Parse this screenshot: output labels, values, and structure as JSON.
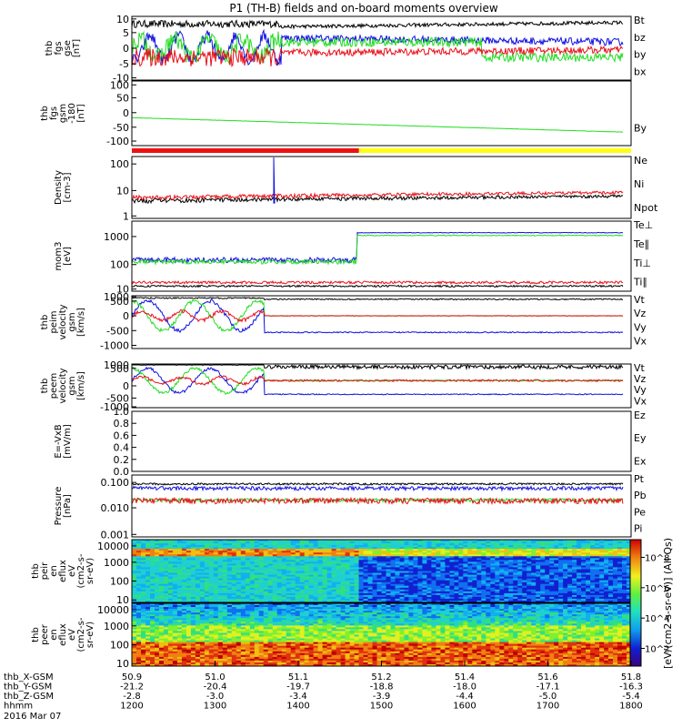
{
  "title": "P1 (TH-B) fields and on-board moments overview",
  "colors": {
    "black": "#000000",
    "red": "#e8101a",
    "green": "#22dd22",
    "blue": "#1010e0"
  },
  "panels": [
    {
      "key": "fgs",
      "ylabel": [
        "thb",
        "fgs",
        "gse",
        "[nT]"
      ],
      "ticks": [
        "10",
        "5",
        "0",
        "-5",
        "-10"
      ],
      "legend": [
        {
          "text": "Bt",
          "color": "black"
        },
        {
          "text": "bz",
          "color": "red"
        },
        {
          "text": "by",
          "color": "green"
        },
        {
          "text": "bx",
          "color": "blue"
        }
      ]
    },
    {
      "key": "fgs_By",
      "ylabel": [
        "thb",
        "fgs",
        "gsm",
        "-180",
        "[nT]"
      ],
      "ticks": [
        "100",
        "50",
        "0",
        "-50",
        "-100"
      ],
      "legend": [
        {
          "text": "By",
          "color": "green"
        }
      ]
    },
    {
      "key": "density",
      "ylabel": [
        "Density",
        "[cm-3]"
      ],
      "ticks": [
        "100",
        "10",
        "1"
      ],
      "legend": [
        {
          "text": "Ne",
          "color": "red"
        },
        {
          "text": "Ni",
          "color": "black"
        },
        {
          "text": "Npot",
          "color": "blue"
        }
      ]
    },
    {
      "key": "temp",
      "ylabel": [
        "mom3",
        "[eV]"
      ],
      "ticks": [
        "1000",
        "100",
        "10"
      ],
      "legend": [
        {
          "text": "Te⊥",
          "color": "red"
        },
        {
          "text": "Te∥",
          "color": "black"
        },
        {
          "text": "Ti⊥",
          "color": "green"
        },
        {
          "text": "Ti∥",
          "color": "green"
        }
      ]
    },
    {
      "key": "peim",
      "ylabel": [
        "thb",
        "peim",
        "velocity",
        "gsm",
        "[km/s]"
      ],
      "ticks": [
        "1000",
        "500",
        "0",
        "-500",
        "-1000"
      ],
      "legend": [
        {
          "text": "Vt",
          "color": "black"
        },
        {
          "text": "Vz",
          "color": "red"
        },
        {
          "text": "Vy",
          "color": "green"
        },
        {
          "text": "Vx",
          "color": "blue"
        }
      ]
    },
    {
      "key": "peem",
      "ylabel": [
        "thb",
        "peem",
        "velocity",
        "gsm",
        "[km/s]"
      ],
      "ticks": [
        "1000",
        "500",
        "0",
        "-500",
        "-1000"
      ],
      "legend": [
        {
          "text": "Vt",
          "color": "black"
        },
        {
          "text": "Vz",
          "color": "red"
        },
        {
          "text": "Vy",
          "color": "green"
        },
        {
          "text": "Vx",
          "color": "blue"
        }
      ]
    },
    {
      "key": "efield",
      "ylabel": [
        "E=-VxB",
        "[mV/m]"
      ],
      "ticks": [
        "1.0",
        "0.8",
        "0.6",
        "0.4",
        "0.2",
        "0.0"
      ],
      "legend": [
        {
          "text": "Ez",
          "color": "red"
        },
        {
          "text": "Ey",
          "color": "green"
        },
        {
          "text": "Ex",
          "color": "blue"
        }
      ]
    },
    {
      "key": "pressure",
      "ylabel": [
        "Pressure",
        "[nPa]"
      ],
      "ticks": [
        "0.100",
        "0.010",
        "0.001"
      ],
      "legend": [
        {
          "text": "Pt",
          "color": "black"
        },
        {
          "text": "Pb",
          "color": "red"
        },
        {
          "text": "Pe",
          "color": "green"
        },
        {
          "text": "Pi",
          "color": "blue"
        }
      ]
    },
    {
      "key": "peir",
      "ylabel": [
        "thb",
        "peir",
        "en",
        "eflux",
        "eV",
        "(cm2-s-",
        "sr-eV)"
      ],
      "ticks": [
        "10000",
        "1000",
        "100",
        "10"
      ],
      "legend": []
    },
    {
      "key": "peer",
      "ylabel": [
        "thb",
        "peer",
        "en",
        "eflux",
        "eV",
        "(cm2-s-",
        "sr-eV)"
      ],
      "ticks": [
        "10000",
        "1000",
        "100",
        "10"
      ],
      "legend": []
    }
  ],
  "colorbar": {
    "label": "[eV/(cm2-s-sr-eV)] (All Qs)",
    "ticks": [
      "10^8",
      "10^6",
      "10^4",
      "10^2"
    ]
  },
  "xaxis": {
    "rows": [
      {
        "label": "thb_X-GSM",
        "values": [
          "50.9",
          "51.0",
          "51.1",
          "51.2",
          "51.4",
          "51.6",
          "51.8"
        ]
      },
      {
        "label": "thb_Y-GSM",
        "values": [
          "-21.2",
          "-20.4",
          "-19.7",
          "-18.8",
          "-18.0",
          "-17.1",
          "-16.3"
        ]
      },
      {
        "label": "thb_Z-GSM",
        "values": [
          "-2.8",
          "-3.0",
          "-3.4",
          "-3.9",
          "-4.4",
          "-5.0",
          "-5.4"
        ]
      },
      {
        "label": "hhmm",
        "values": [
          "1200",
          "1300",
          "1400",
          "1500",
          "1600",
          "1700",
          "1800"
        ]
      }
    ],
    "date": "2016 Mar 07"
  },
  "mode_bar": {
    "red_until": "~1445",
    "yellow_from": "~1445"
  },
  "chart_data": [
    {
      "type": "line",
      "title": "thb fgs gse [nT]",
      "x": [
        "1200",
        "1300",
        "1400",
        "1500",
        "1600",
        "1700",
        "1800"
      ],
      "ylim": [
        -10,
        10
      ],
      "series": [
        {
          "name": "Bt",
          "values": [
            9,
            9,
            8,
            7,
            6,
            7,
            8
          ]
        },
        {
          "name": "bz",
          "values": [
            -3,
            -5,
            -2,
            -2,
            -2,
            -1,
            0
          ]
        },
        {
          "name": "by",
          "values": [
            3,
            -4,
            2,
            3,
            2,
            -3,
            -4
          ]
        },
        {
          "name": "bx",
          "values": [
            -4,
            5,
            5,
            3,
            4,
            5,
            6
          ]
        }
      ]
    },
    {
      "type": "line",
      "title": "thb fgs gsm -180 [nT]",
      "x": [
        "1200",
        "1300",
        "1400",
        "1500",
        "1600",
        "1700",
        "1800"
      ],
      "ylim": [
        -120,
        100
      ],
      "series": [
        {
          "name": "By",
          "values": [
            -20,
            -30,
            -40,
            -50,
            -58,
            -64,
            -70
          ]
        }
      ]
    },
    {
      "type": "line",
      "title": "Density [cm-3]",
      "x": [
        "1200",
        "1300",
        "1400",
        "1500",
        "1600",
        "1700",
        "1800"
      ],
      "ylim": [
        1,
        300
      ],
      "yscale": "log",
      "series": [
        {
          "name": "Ne",
          "values": [
            4,
            4,
            5,
            6,
            7,
            7,
            8
          ]
        },
        {
          "name": "Ni",
          "values": [
            3,
            3,
            3,
            4,
            4,
            5,
            5
          ]
        },
        {
          "name": "Npot",
          "values": [
            3,
            3,
            3,
            4,
            4,
            5,
            5
          ]
        }
      ]
    },
    {
      "type": "line",
      "title": "mom3 [eV]",
      "x": [
        "1200",
        "1300",
        "1400",
        "1500",
        "1600",
        "1700",
        "1800"
      ],
      "ylim": [
        10,
        4000
      ],
      "yscale": "log",
      "series": [
        {
          "name": "Te⊥",
          "values": [
            20,
            20,
            18,
            15,
            15,
            14,
            14
          ]
        },
        {
          "name": "Te∥",
          "values": [
            15,
            15,
            14,
            12,
            12,
            12,
            12
          ]
        },
        {
          "name": "Ti⊥",
          "values": [
            150,
            150,
            130,
            1500,
            1500,
            1500,
            1500
          ]
        },
        {
          "name": "Ti∥",
          "values": [
            100,
            100,
            100,
            1000,
            1000,
            1000,
            1000
          ]
        }
      ]
    },
    {
      "type": "line",
      "title": "thb peim velocity gsm [km/s]",
      "x": [
        "1200",
        "1300",
        "1400",
        "1500",
        "1600",
        "1700",
        "1800"
      ],
      "ylim": [
        -1000,
        1000
      ],
      "series": [
        {
          "name": "Vt",
          "values": [
            600,
            600,
            580,
            560,
            560,
            560,
            560
          ]
        },
        {
          "name": "Vz",
          "values": [
            0,
            0,
            0,
            0,
            0,
            0,
            0
          ]
        },
        {
          "name": "Vy",
          "values": [
            0,
            0,
            0,
            0,
            0,
            0,
            0
          ]
        },
        {
          "name": "Vx",
          "values": [
            -500,
            -500,
            -560,
            -560,
            -560,
            -560,
            -560
          ]
        }
      ]
    },
    {
      "type": "line",
      "title": "thb peem velocity gsm [km/s]",
      "x": [
        "1200",
        "1300",
        "1400",
        "1500",
        "1600",
        "1700",
        "1800"
      ],
      "ylim": [
        -1000,
        1000
      ],
      "series": [
        {
          "name": "Vt",
          "values": [
            700,
            650,
            600,
            560,
            560,
            560,
            560
          ]
        },
        {
          "name": "Vz",
          "values": [
            0,
            0,
            0,
            0,
            0,
            0,
            0
          ]
        },
        {
          "name": "Vy",
          "values": [
            0,
            0,
            0,
            0,
            0,
            0,
            0
          ]
        },
        {
          "name": "Vx",
          "values": [
            -500,
            -500,
            -500,
            -480,
            -500,
            -500,
            -500
          ]
        }
      ]
    },
    {
      "type": "line",
      "title": "E=-VxB [mV/m]",
      "x": [
        "1200",
        "1800"
      ],
      "ylim": [
        0,
        1
      ],
      "series": []
    },
    {
      "type": "line",
      "title": "Pressure [nPa]",
      "x": [
        "1200",
        "1300",
        "1400",
        "1500",
        "1600",
        "1700",
        "1800"
      ],
      "ylim": [
        0.001,
        0.2
      ],
      "yscale": "log",
      "series": [
        {
          "name": "Pt",
          "values": [
            0.08,
            0.07,
            0.06,
            0.06,
            0.06,
            0.07,
            0.08
          ]
        },
        {
          "name": "Pb",
          "values": [
            0.02,
            0.015,
            0.015,
            0.02,
            0.02,
            0.02,
            0.02
          ]
        },
        {
          "name": "Pe",
          "values": [
            0.02,
            0.02,
            0.02,
            0.02,
            0.02,
            0.03,
            0.03
          ]
        },
        {
          "name": "Pi",
          "values": [
            0.05,
            0.04,
            0.04,
            0.04,
            0.04,
            0.05,
            0.05
          ]
        }
      ]
    },
    {
      "type": "heatmap",
      "title": "thb peir en eflux",
      "ylim": [
        5,
        25000
      ],
      "yscale": "log"
    },
    {
      "type": "heatmap",
      "title": "thb peer en eflux",
      "ylim": [
        5,
        25000
      ],
      "yscale": "log"
    }
  ]
}
